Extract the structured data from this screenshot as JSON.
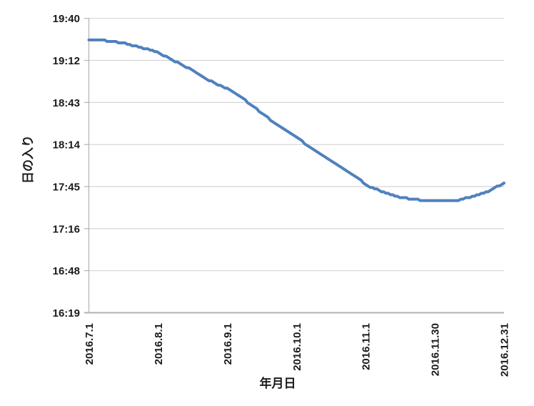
{
  "chart_data": {
    "type": "line",
    "title": "",
    "xlabel": "年月日",
    "ylabel": "日の入り",
    "grid": true,
    "legend": "none",
    "line_color": "#4f81bd",
    "gridline_color": "#d4d4d4",
    "axis_color": "#b2b2b2",
    "text_color": "#1a1a1a",
    "y_axis": {
      "tick_labels": [
        "19:40",
        "19:12",
        "18:43",
        "18:14",
        "17:45",
        "17:16",
        "16:48",
        "16:19"
      ],
      "max_minutes": 1180.8,
      "min_minutes": 979.2,
      "tick_interval_minutes": 28.8
    },
    "x_axis": {
      "tick_labels": [
        "2016.7.1",
        "2016.8.1",
        "2016.9.1",
        "2016.10.1",
        "2016.11.1",
        "2016.11.30",
        "2016.12.31"
      ],
      "first_day_index": 0,
      "last_day_index": 183
    },
    "series": [
      {
        "name": "日の入り",
        "points": [
          {
            "date": "2016.7.1",
            "day": 0,
            "time": "19:26"
          },
          {
            "date": "2016.7.6",
            "day": 5,
            "time": "19:26"
          },
          {
            "date": "2016.7.11",
            "day": 10,
            "time": "19:25"
          },
          {
            "date": "2016.7.16",
            "day": 15,
            "time": "19:24"
          },
          {
            "date": "2016.7.21",
            "day": 20,
            "time": "19:22"
          },
          {
            "date": "2016.7.26",
            "day": 25,
            "time": "19:20"
          },
          {
            "date": "2016.8.1",
            "day": 31,
            "time": "19:17"
          },
          {
            "date": "2016.8.6",
            "day": 36,
            "time": "19:13"
          },
          {
            "date": "2016.8.11",
            "day": 41,
            "time": "19:09"
          },
          {
            "date": "2016.8.16",
            "day": 46,
            "time": "19:05"
          },
          {
            "date": "2016.8.21",
            "day": 51,
            "time": "19:00"
          },
          {
            "date": "2016.8.26",
            "day": 56,
            "time": "18:56"
          },
          {
            "date": "2016.9.1",
            "day": 62,
            "time": "18:52"
          },
          {
            "date": "2016.9.6",
            "day": 67,
            "time": "18:47"
          },
          {
            "date": "2016.9.11",
            "day": 72,
            "time": "18:41"
          },
          {
            "date": "2016.9.16",
            "day": 77,
            "time": "18:35"
          },
          {
            "date": "2016.9.21",
            "day": 82,
            "time": "18:29"
          },
          {
            "date": "2016.9.26",
            "day": 87,
            "time": "18:24"
          },
          {
            "date": "2016.10.1",
            "day": 92,
            "time": "18:19"
          },
          {
            "date": "2016.10.6",
            "day": 97,
            "time": "18:13"
          },
          {
            "date": "2016.10.11",
            "day": 102,
            "time": "18:08"
          },
          {
            "date": "2016.10.16",
            "day": 107,
            "time": "18:03"
          },
          {
            "date": "2016.10.21",
            "day": 112,
            "time": "17:58"
          },
          {
            "date": "2016.10.26",
            "day": 117,
            "time": "17:53"
          },
          {
            "date": "2016.11.1",
            "day": 123,
            "time": "17:46"
          },
          {
            "date": "2016.11.6",
            "day": 128,
            "time": "17:43"
          },
          {
            "date": "2016.11.11",
            "day": 133,
            "time": "17:40"
          },
          {
            "date": "2016.11.16",
            "day": 138,
            "time": "17:38"
          },
          {
            "date": "2016.11.21",
            "day": 143,
            "time": "17:37"
          },
          {
            "date": "2016.11.26",
            "day": 148,
            "time": "17:36"
          },
          {
            "date": "2016.11.30",
            "day": 152,
            "time": "17:36"
          },
          {
            "date": "2016.12.5",
            "day": 157,
            "time": "17:36"
          },
          {
            "date": "2016.12.10",
            "day": 162,
            "time": "17:36"
          },
          {
            "date": "2016.12.15",
            "day": 167,
            "time": "17:38"
          },
          {
            "date": "2016.12.20",
            "day": 172,
            "time": "17:40"
          },
          {
            "date": "2016.12.25",
            "day": 177,
            "time": "17:43"
          },
          {
            "date": "2016.12.31",
            "day": 183,
            "time": "17:48"
          }
        ]
      }
    ]
  }
}
